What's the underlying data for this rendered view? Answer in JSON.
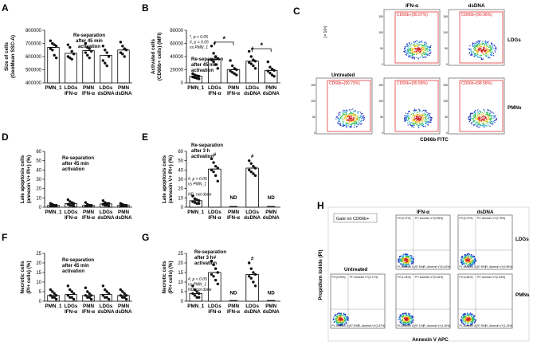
{
  "panel_letters": [
    "A",
    "B",
    "C",
    "D",
    "E",
    "F",
    "G",
    "H"
  ],
  "chart_data": [
    {
      "id": "A",
      "type": "bar",
      "ylabel_lines": [
        "Size of cells",
        "(GeoMean SSC-A)"
      ],
      "categories": [
        [
          "PMN_1"
        ],
        [
          "LDGs",
          "IFN-α"
        ],
        [
          "PMN",
          "IFN-α"
        ],
        [
          "LDGs",
          "dsDNA"
        ],
        [
          "PMN",
          "dsDNA"
        ]
      ],
      "values": [
        670000,
        625000,
        645000,
        610000,
        650000
      ],
      "points": [
        [
          720000,
          700000,
          690000,
          680000,
          660000,
          650000,
          610000,
          590000
        ],
        [
          690000,
          670000,
          640000,
          620000,
          600000,
          590000,
          580000
        ],
        [
          700000,
          670000,
          660000,
          640000,
          630000,
          610000,
          590000
        ],
        [
          680000,
          650000,
          630000,
          600000,
          570000,
          550000,
          530000
        ],
        [
          710000,
          680000,
          660000,
          650000,
          630000,
          620000,
          600000
        ]
      ],
      "ylim": [
        400000,
        800000
      ],
      "yticks": [
        400000,
        500000,
        600000,
        700000,
        800000
      ],
      "ytick_labels": [
        "400000",
        "500000",
        "600000",
        "700000",
        "800000"
      ],
      "annotation": [
        "Re-separation",
        "after 45 min",
        "activation"
      ],
      "markers": [],
      "nd": [],
      "brackets": [],
      "legend": []
    },
    {
      "id": "B",
      "type": "bar",
      "ylabel_lines": [
        "Activated cells",
        "(CD66b+ cells) (MFI)"
      ],
      "categories": [
        [
          "PMN_1"
        ],
        [
          "LDGs",
          "IFN-α"
        ],
        [
          "PMN",
          "IFN-α"
        ],
        [
          "LDGs",
          "dsDNA"
        ],
        [
          "PMN",
          "dsDNA"
        ]
      ],
      "values": [
        10000,
        36000,
        20000,
        33000,
        19000
      ],
      "points": [
        [
          14000,
          12000,
          11000,
          10000,
          9000,
          8000,
          7000,
          6000
        ],
        [
          56000,
          45000,
          40000,
          37000,
          35000,
          32000,
          28000,
          22000
        ],
        [
          34000,
          26000,
          22000,
          20000,
          18000,
          16000,
          14000,
          12000
        ],
        [
          48000,
          40000,
          35000,
          33000,
          31000,
          29000,
          26000,
          22000
        ],
        [
          32000,
          24000,
          21000,
          19000,
          18000,
          15000,
          12000,
          10000
        ]
      ],
      "ylim": [
        0,
        80000
      ],
      "yticks": [
        0,
        20000,
        40000,
        60000,
        80000
      ],
      "ytick_labels": [
        "0",
        "20000",
        "40000",
        "60000",
        "80000"
      ],
      "legend": [
        "*, p < 0.05",
        "#, p < 0.05",
        "vs PMN_1"
      ],
      "annotation": [
        "Re-separation",
        "after 45 min",
        "activation"
      ],
      "markers": [
        {
          "cat": 1,
          "sym": "#",
          "y": 58000
        },
        {
          "cat": 3,
          "sym": "#",
          "y": 50000
        }
      ],
      "brackets": [
        {
          "from": 1,
          "to": 2,
          "y": 62000,
          "sym": "*"
        },
        {
          "from": 3,
          "to": 4,
          "y": 52000,
          "sym": "*"
        }
      ],
      "nd": []
    },
    {
      "id": "D",
      "type": "bar",
      "ylabel_lines": [
        "Late apoptosis cells",
        "(annexin V+ PI+) (%)"
      ],
      "categories": [
        [
          "PMN_1"
        ],
        [
          "LDGs",
          "IFN-α"
        ],
        [
          "PMN",
          "IFN-α"
        ],
        [
          "LDGs",
          "dsDNA"
        ],
        [
          "PMN",
          "dsDNA"
        ]
      ],
      "values": [
        2,
        4,
        2,
        3.5,
        2
      ],
      "points": [
        [
          4,
          3,
          2,
          2,
          1,
          1,
          2,
          1
        ],
        [
          8,
          6,
          5,
          4,
          3,
          2,
          2,
          1
        ],
        [
          5,
          3,
          2,
          2,
          1,
          1,
          2,
          1
        ],
        [
          7,
          5,
          4,
          4,
          3,
          2,
          2,
          1
        ],
        [
          4,
          3,
          2,
          2,
          1,
          1,
          2,
          1
        ]
      ],
      "ylim": [
        0,
        60
      ],
      "yticks": [
        0,
        10,
        20,
        30,
        40,
        50,
        60
      ],
      "ytick_labels": [
        "0",
        "10",
        "20",
        "30",
        "40",
        "50",
        "60"
      ],
      "annotation": [
        "Re-separation",
        "after 45 min",
        "activation"
      ],
      "markers": [],
      "nd": [],
      "brackets": [],
      "legend": []
    },
    {
      "id": "E",
      "type": "bar",
      "ylabel_lines": [
        "Late apoptosis cells",
        "(annexin V+ PI+) (%)"
      ],
      "categories": [
        [
          "PMN_1"
        ],
        [
          "LDGs",
          "IFN-α"
        ],
        [
          "PMN",
          "IFN-α"
        ],
        [
          "LDGs",
          "dsDNA"
        ],
        [
          "PMN",
          "dsDNA"
        ]
      ],
      "values": [
        7,
        41,
        0,
        42,
        0
      ],
      "points": [
        [
          12,
          9,
          8,
          7,
          6,
          5,
          4,
          4
        ],
        [
          52,
          48,
          44,
          42,
          40,
          38,
          34,
          28
        ],
        [],
        [
          50,
          47,
          44,
          42,
          40,
          38,
          36,
          34
        ],
        []
      ],
      "ylim": [
        0,
        60
      ],
      "yticks": [
        0,
        10,
        20,
        30,
        40,
        50,
        60
      ],
      "ytick_labels": [
        "0",
        "10",
        "20",
        "30",
        "40",
        "50",
        "60"
      ],
      "annotation": [
        "Re-separation",
        "after 3 h",
        "activation"
      ],
      "legend": [
        "#, p < 0.05",
        "vs PMN_1",
        "",
        "ND, not done"
      ],
      "markers": [
        {
          "cat": 1,
          "sym": "#",
          "y": 55
        },
        {
          "cat": 3,
          "sym": "#",
          "y": 53
        }
      ],
      "nd": [
        2,
        4
      ],
      "nd_label": "ND",
      "brackets": []
    },
    {
      "id": "F",
      "type": "bar",
      "ylabel_lines": [
        "Necrotic cells",
        "(PI+ cells) (%)"
      ],
      "categories": [
        [
          "PMN_1"
        ],
        [
          "LDGs",
          "IFN-α"
        ],
        [
          "PMN",
          "IFN-α"
        ],
        [
          "LDGs",
          "dsDNA"
        ],
        [
          "PMN",
          "dsDNA"
        ]
      ],
      "values": [
        3,
        3.5,
        3,
        3.5,
        3
      ],
      "points": [
        [
          6,
          5,
          4,
          3,
          3,
          2,
          2,
          1
        ],
        [
          8,
          6,
          5,
          4,
          3,
          2,
          2,
          1
        ],
        [
          7,
          5,
          4,
          3,
          3,
          2,
          2,
          1
        ],
        [
          8,
          6,
          5,
          4,
          3,
          2,
          2,
          1
        ],
        [
          6,
          5,
          4,
          3,
          3,
          2,
          2,
          1
        ]
      ],
      "ylim": [
        0,
        25
      ],
      "yticks": [
        0,
        5,
        10,
        15,
        20,
        25
      ],
      "ytick_labels": [
        "0",
        "5",
        "10",
        "15",
        "20",
        "25"
      ],
      "annotation": [
        "Re-separation",
        "after 45 min",
        "activation"
      ],
      "markers": [],
      "nd": [],
      "brackets": [],
      "legend": []
    },
    {
      "id": "G",
      "type": "bar",
      "ylabel_lines": [
        "Necrotic cells",
        "(PI+ cells) (%)"
      ],
      "categories": [
        [
          "PMN_1"
        ],
        [
          "LDGs",
          "IFN-α"
        ],
        [
          "PMN",
          "IFN-α"
        ],
        [
          "LDGs",
          "dsDNA"
        ],
        [
          "PMN",
          "dsDNA"
        ]
      ],
      "values": [
        4,
        15,
        0,
        14,
        0
      ],
      "points": [
        [
          8,
          6,
          5,
          4,
          4,
          3,
          2,
          2
        ],
        [
          21,
          19,
          17,
          15,
          14,
          13,
          11,
          9
        ],
        [],
        [
          20,
          17,
          15,
          14,
          13,
          12,
          10,
          8
        ],
        []
      ],
      "ylim": [
        0,
        25
      ],
      "yticks": [
        0,
        5,
        10,
        15,
        20,
        25
      ],
      "ytick_labels": [
        "0",
        "5",
        "10",
        "15",
        "20",
        "25"
      ],
      "annotation": [
        "Re-separation",
        "after 3 h",
        "activation"
      ],
      "legend": [
        "#, p < 0.05",
        "vs PMN_1",
        "ND, not done"
      ],
      "markers": [
        {
          "cat": 1,
          "sym": "#",
          "y": 22
        },
        {
          "cat": 3,
          "sym": "#",
          "y": 21.5
        }
      ],
      "nd": [
        2,
        4
      ],
      "nd_label": "ND",
      "brackets": []
    }
  ],
  "flow_c": {
    "ylabel": "SSC-A",
    "yunit": "(× 10³)",
    "xlabel": "CD66b FITC",
    "col_labels": [
      "IFN-α",
      "dsDNA"
    ],
    "row_labels": [
      "LDGs",
      "PMNs"
    ],
    "untreated_label": "Untreated",
    "gates": {
      "ldg_ifn": "CD66b+(95.07%)",
      "ldg_dsdna": "CD66b+(90.96%)",
      "untreated": "CD66b+(90.73%)",
      "pmn_ifn": "CD66b+(95.58%)",
      "pmn_dsdna": "CD66b+(98.58%)"
    }
  },
  "flow_h": {
    "gate_label": "Gate on CD66b+",
    "ylabel": "Propidium Iodide (PI)",
    "xlabel": "Annexin V APC",
    "col_labels": [
      "IFN-α",
      "dsDNA"
    ],
    "row_labels": [
      "LDGs",
      "PMNs"
    ],
    "untreated_label": "Untreated",
    "quads": {
      "ldg_ifn": [
        "PI+(0.17%)",
        "PI+ Annexin V+(0.55%)",
        "PI- Annexin V-(97.5%)",
        "PI- Annexin V+(0.43%)"
      ],
      "ldg_dsdna": [
        "PI+(0.72%)",
        "PI+ Annexin V+(0.75%)",
        "PI- Annexin V-(97.5%)",
        "PI- Annexin V+(0.95%)"
      ],
      "untreated": [
        "PI+(0.29%)",
        "PI+ Annexin V+(0.17%)",
        "PI- Annexin V-(97.5%)",
        "PI- Annexin V+(1.87%)"
      ],
      "pmn_ifn": [
        "PI+(1.04%)",
        "PI+ Annexin V+(0.45%)",
        "PI- Annexin V-(97.1%)",
        "PI- Annexin V+(1.30%)"
      ],
      "pmn_dsdna": [
        "PI+(0.64%)",
        "PI+ Annexin V+(0.33%)",
        "PI- Annexin V-(97.5%)",
        "PI- Annexin V+(1.23%)"
      ]
    }
  },
  "colors": {
    "dot": "#111111",
    "axis": "#000000",
    "gate": "#e02020"
  }
}
